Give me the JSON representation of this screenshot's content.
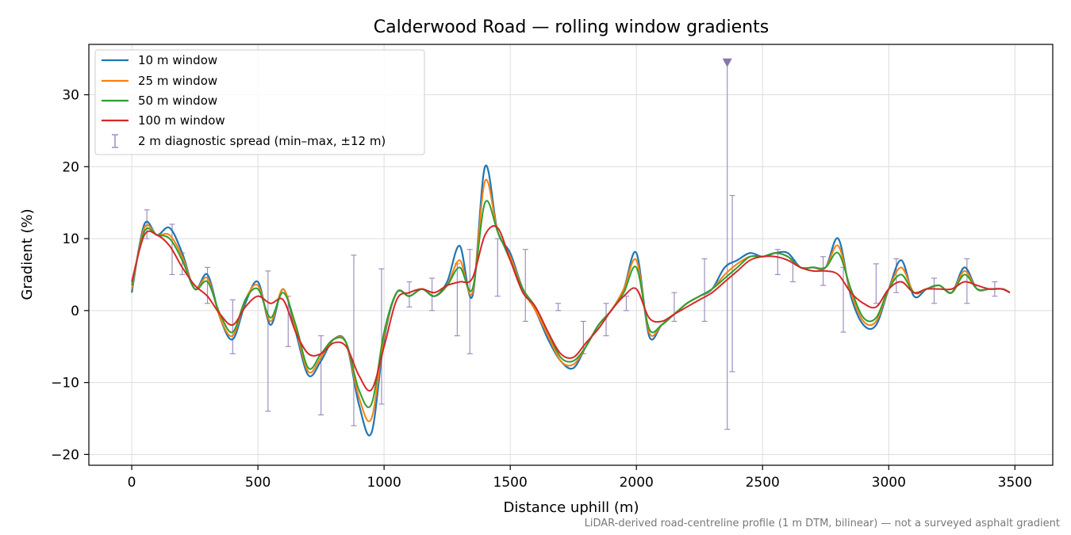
{
  "chart_data": {
    "type": "line",
    "title": "Calderwood Road — rolling window gradients",
    "xlabel": "Distance uphill (m)",
    "ylabel": "Gradient (%)",
    "xlim": [
      -170,
      3650
    ],
    "ylim": [
      -21.5,
      37
    ],
    "xticks": [
      0,
      500,
      1000,
      1500,
      2000,
      2500,
      3000,
      3500
    ],
    "xtick_labels": [
      "0",
      "500",
      "1000",
      "1500",
      "2000",
      "2500",
      "3000",
      "3500"
    ],
    "yticks": [
      -20,
      -10,
      0,
      10,
      20,
      30
    ],
    "ytick_labels": [
      "−20",
      "−10",
      "0",
      "10",
      "20",
      "30"
    ],
    "grid": true,
    "legend_position": "upper-left",
    "footnote": "LiDAR-derived road-centreline profile (1 m DTM, bilinear) — not a surveyed asphalt gradient",
    "x": [
      0,
      50,
      100,
      150,
      200,
      250,
      300,
      350,
      400,
      450,
      500,
      550,
      600,
      650,
      700,
      750,
      800,
      850,
      900,
      950,
      1000,
      1050,
      1100,
      1150,
      1200,
      1250,
      1300,
      1350,
      1400,
      1450,
      1500,
      1550,
      1600,
      1650,
      1700,
      1750,
      1800,
      1850,
      1900,
      1950,
      2000,
      2050,
      2100,
      2150,
      2200,
      2250,
      2300,
      2350,
      2400,
      2450,
      2500,
      2550,
      2600,
      2650,
      2700,
      2750,
      2800,
      2850,
      2900,
      2950,
      3000,
      3050,
      3100,
      3150,
      3200,
      3250,
      3300,
      3350,
      3400,
      3450,
      3480
    ],
    "series": [
      {
        "name": "10 m window",
        "color": "#1f77b4",
        "values": [
          2.5,
          12.0,
          10.5,
          11.5,
          8.0,
          3.0,
          5.0,
          -1.0,
          -4.0,
          1.0,
          4.0,
          -2.0,
          3.0,
          -3.0,
          -9.0,
          -7.0,
          -4.0,
          -4.5,
          -13.0,
          -17.0,
          -4.0,
          2.5,
          2.0,
          3.0,
          2.0,
          4.0,
          9.0,
          2.0,
          20.0,
          11.0,
          8.0,
          3.0,
          0.0,
          -4.0,
          -7.0,
          -8.0,
          -5.0,
          -2.0,
          0.0,
          3.0,
          8.0,
          -3.5,
          -2.0,
          -0.5,
          1.0,
          2.0,
          3.0,
          6.0,
          7.0,
          8.0,
          7.5,
          8.0,
          8.0,
          6.0,
          6.0,
          6.0,
          10.0,
          2.0,
          -2.0,
          -2.0,
          3.0,
          7.0,
          2.0,
          3.0,
          3.5,
          2.5,
          6.0,
          3.0,
          3.0,
          3.0,
          2.5
        ]
      },
      {
        "name": "25 m window",
        "color": "#ff7f0e",
        "values": [
          3.0,
          11.5,
          10.5,
          10.5,
          7.5,
          3.0,
          4.5,
          -1.0,
          -3.5,
          1.5,
          3.5,
          -1.5,
          3.0,
          -2.5,
          -8.5,
          -6.5,
          -4.0,
          -4.5,
          -12.0,
          -15.0,
          -3.5,
          2.5,
          2.0,
          3.0,
          2.0,
          3.5,
          7.0,
          2.5,
          18.0,
          11.0,
          7.5,
          3.0,
          0.0,
          -3.5,
          -7.0,
          -7.5,
          -5.0,
          -2.0,
          0.0,
          3.0,
          7.0,
          -3.0,
          -2.0,
          -0.5,
          1.0,
          2.0,
          3.0,
          5.0,
          6.5,
          7.5,
          7.5,
          8.0,
          7.5,
          6.0,
          6.0,
          6.0,
          9.0,
          2.5,
          -1.5,
          -1.5,
          3.0,
          6.0,
          2.5,
          3.0,
          3.5,
          2.5,
          5.5,
          3.0,
          3.0,
          3.0,
          2.5
        ]
      },
      {
        "name": "50 m window",
        "color": "#2ca02c",
        "values": [
          3.5,
          11.0,
          10.5,
          10.0,
          7.0,
          3.0,
          4.0,
          -0.5,
          -3.0,
          1.5,
          3.0,
          -1.0,
          2.5,
          -2.0,
          -8.0,
          -6.0,
          -4.0,
          -4.5,
          -11.0,
          -13.0,
          -3.0,
          2.5,
          2.0,
          3.0,
          2.0,
          3.5,
          6.0,
          3.0,
          15.0,
          11.0,
          7.0,
          3.0,
          0.5,
          -3.0,
          -6.5,
          -7.0,
          -5.0,
          -2.0,
          0.0,
          2.5,
          6.0,
          -2.5,
          -2.0,
          -0.5,
          1.0,
          2.0,
          3.0,
          4.5,
          6.0,
          7.5,
          7.5,
          8.0,
          7.5,
          6.0,
          6.0,
          6.0,
          8.0,
          3.0,
          -1.0,
          -1.0,
          3.0,
          5.0,
          2.5,
          3.0,
          3.5,
          2.5,
          5.0,
          3.0,
          3.0,
          3.0,
          2.5
        ]
      },
      {
        "name": "100 m window",
        "color": "#d62728",
        "values": [
          4.0,
          10.5,
          10.5,
          9.0,
          6.0,
          3.5,
          2.0,
          -0.5,
          -2.0,
          0.5,
          2.0,
          1.0,
          1.5,
          -3.0,
          -6.0,
          -6.0,
          -4.5,
          -5.0,
          -9.0,
          -11.0,
          -5.0,
          1.5,
          2.5,
          3.0,
          2.5,
          3.5,
          4.0,
          4.5,
          10.5,
          11.5,
          7.0,
          2.5,
          0.5,
          -3.0,
          -6.0,
          -6.5,
          -4.5,
          -2.5,
          0.0,
          2.0,
          3.0,
          -1.0,
          -1.5,
          -0.5,
          0.5,
          1.5,
          2.5,
          4.0,
          5.5,
          7.0,
          7.5,
          7.5,
          7.0,
          6.0,
          5.5,
          5.5,
          5.0,
          2.5,
          1.0,
          0.5,
          3.0,
          4.0,
          2.5,
          3.0,
          3.0,
          3.0,
          4.0,
          3.5,
          3.0,
          3.0,
          2.5
        ]
      }
    ],
    "diagnostic_spread": {
      "name": "2 m diagnostic spread (min–max, ±12 m)",
      "color": "#9e8fbf",
      "x": [
        60,
        160,
        200,
        300,
        400,
        540,
        620,
        750,
        880,
        990,
        1100,
        1190,
        1290,
        1340,
        1450,
        1560,
        1690,
        1790,
        1880,
        1960,
        2150,
        2270,
        2360,
        2380,
        2560,
        2620,
        2740,
        2820,
        2950,
        3030,
        3180,
        3310,
        3420
      ],
      "low": [
        10.0,
        5.0,
        5.0,
        1.0,
        -6.0,
        -14.0,
        -5.0,
        -14.5,
        -16.0,
        -13.0,
        0.5,
        0.0,
        -3.5,
        -6.0,
        2.0,
        -1.5,
        0.0,
        -6.0,
        -3.5,
        0.0,
        -1.5,
        -1.5,
        -16.5,
        -8.5,
        5.0,
        4.0,
        3.5,
        -3.0,
        1.0,
        2.5,
        1.0,
        1.0,
        2.0
      ],
      "high": [
        14.0,
        12.0,
        8.0,
        6.0,
        1.5,
        5.5,
        2.0,
        -3.5,
        7.7,
        5.8,
        4.0,
        4.5,
        6.5,
        8.5,
        10.0,
        8.5,
        1.0,
        -1.5,
        1.0,
        2.0,
        2.5,
        7.2,
        34.5,
        16.0,
        8.5,
        7.0,
        7.5,
        6.0,
        6.5,
        7.2,
        4.5,
        7.2,
        4.0
      ]
    }
  }
}
